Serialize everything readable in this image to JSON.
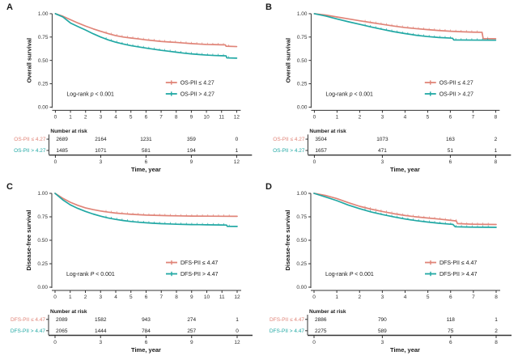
{
  "figure": {
    "background": "#ffffff",
    "colors": {
      "low": "#E08478",
      "high": "#21A8A4",
      "axis": "#333333",
      "text": "#222222"
    }
  },
  "chart_data": [
    {
      "type": "line",
      "letter": "A",
      "ylabel": "Overall survival",
      "xlabel": "Time, year",
      "xlim": [
        0,
        12
      ],
      "ylim": [
        0,
        1
      ],
      "xticks": [
        0,
        1,
        2,
        3,
        4,
        5,
        6,
        7,
        8,
        9,
        10,
        11,
        12
      ],
      "ytick_values": [
        1,
        0.75,
        0.5,
        0.25,
        0
      ],
      "ytick_labels": [
        "1.00",
        "0.75",
        "0.50",
        "0.25",
        "0.00"
      ],
      "logrank": {
        "prefix": "Log-rank ",
        "p": "p",
        "suffix": " < 0.001"
      },
      "legend": [
        {
          "label": "OS-PII ≤ 4.27",
          "color_key": "low"
        },
        {
          "label": "OS-PII > 4.27",
          "color_key": "high"
        }
      ],
      "series": [
        {
          "name": "OS-PII ≤ 4.27",
          "color_key": "low",
          "points": [
            [
              0,
              1
            ],
            [
              0.5,
              0.972
            ],
            [
              1,
              0.935
            ],
            [
              1.5,
              0.9
            ],
            [
              2,
              0.867
            ],
            [
              2.5,
              0.838
            ],
            [
              3,
              0.811
            ],
            [
              3.5,
              0.787
            ],
            [
              4,
              0.765
            ],
            [
              4.5,
              0.75
            ],
            [
              5,
              0.74
            ],
            [
              5.5,
              0.73
            ],
            [
              6,
              0.72
            ],
            [
              6.5,
              0.711
            ],
            [
              7,
              0.703
            ],
            [
              7.5,
              0.697
            ],
            [
              8,
              0.692
            ],
            [
              8.5,
              0.686
            ],
            [
              9,
              0.68
            ],
            [
              9.5,
              0.675
            ],
            [
              10,
              0.671
            ],
            [
              10.5,
              0.669
            ],
            [
              11,
              0.667
            ],
            [
              11.25,
              0.666
            ],
            [
              11.3,
              0.652
            ],
            [
              12,
              0.648
            ]
          ]
        },
        {
          "name": "OS-PII > 4.27",
          "color_key": "high",
          "points": [
            [
              0,
              1
            ],
            [
              0.5,
              0.965
            ],
            [
              1,
              0.9
            ],
            [
              1.5,
              0.862
            ],
            [
              2,
              0.825
            ],
            [
              2.5,
              0.785
            ],
            [
              3,
              0.75
            ],
            [
              3.5,
              0.72
            ],
            [
              4,
              0.695
            ],
            [
              4.5,
              0.675
            ],
            [
              5,
              0.658
            ],
            [
              5.5,
              0.645
            ],
            [
              6,
              0.632
            ],
            [
              6.5,
              0.62
            ],
            [
              7,
              0.608
            ],
            [
              7.5,
              0.598
            ],
            [
              8,
              0.588
            ],
            [
              8.5,
              0.578
            ],
            [
              9,
              0.57
            ],
            [
              9.5,
              0.563
            ],
            [
              10,
              0.557
            ],
            [
              10.5,
              0.553
            ],
            [
              11,
              0.55
            ],
            [
              11.3,
              0.548
            ],
            [
              11.35,
              0.527
            ],
            [
              12,
              0.524
            ]
          ]
        }
      ],
      "risk_table": {
        "header": "Number at risk",
        "ticks": [
          0,
          3,
          6,
          9,
          12
        ],
        "rows": [
          {
            "label": "OS-PII ≤ 4.27",
            "color_key": "low",
            "values": [
              "2689",
              "2164",
              "1231",
              "359",
              "0"
            ]
          },
          {
            "label": "OS-PII > 4.27",
            "color_key": "high",
            "values": [
              "1485",
              "1071",
              "581",
              "194",
              "1"
            ]
          }
        ]
      }
    },
    {
      "type": "line",
      "letter": "B",
      "ylabel": "Overall survival",
      "xlabel": "Time, year",
      "xlim": [
        0,
        8
      ],
      "ylim": [
        0,
        1
      ],
      "xticks": [
        0,
        1,
        2,
        3,
        4,
        5,
        6,
        7,
        8
      ],
      "ytick_values": [
        1,
        0.75,
        0.5,
        0.25,
        0
      ],
      "ytick_labels": [
        "1.00",
        "0.75",
        "0.50",
        "0.25",
        "0.00"
      ],
      "logrank": {
        "prefix": "Log-rank ",
        "p": "p",
        "suffix": " < 0.001"
      },
      "legend": [
        {
          "label": "OS-PII ≤ 4.27",
          "color_key": "low"
        },
        {
          "label": "OS-PII > 4.27",
          "color_key": "high"
        }
      ],
      "series": [
        {
          "name": "OS-PII ≤ 4.27",
          "color_key": "low",
          "points": [
            [
              0,
              1
            ],
            [
              0.5,
              0.985
            ],
            [
              1,
              0.965
            ],
            [
              1.5,
              0.945
            ],
            [
              2,
              0.924
            ],
            [
              2.5,
              0.905
            ],
            [
              3,
              0.886
            ],
            [
              3.5,
              0.868
            ],
            [
              4,
              0.852
            ],
            [
              4.5,
              0.84
            ],
            [
              5,
              0.829
            ],
            [
              5.5,
              0.82
            ],
            [
              6,
              0.812
            ],
            [
              6.5,
              0.807
            ],
            [
              7,
              0.803
            ],
            [
              7.4,
              0.801
            ],
            [
              7.45,
              0.733
            ],
            [
              8,
              0.732
            ]
          ]
        },
        {
          "name": "OS-PII > 4.27",
          "color_key": "high",
          "points": [
            [
              0,
              1
            ],
            [
              0.5,
              0.975
            ],
            [
              1,
              0.944
            ],
            [
              1.5,
              0.914
            ],
            [
              2,
              0.886
            ],
            [
              2.5,
              0.858
            ],
            [
              3,
              0.832
            ],
            [
              3.5,
              0.808
            ],
            [
              4,
              0.787
            ],
            [
              4.5,
              0.769
            ],
            [
              5,
              0.755
            ],
            [
              5.5,
              0.745
            ],
            [
              6,
              0.739
            ],
            [
              6.1,
              0.737
            ],
            [
              6.15,
              0.719
            ],
            [
              7,
              0.717
            ],
            [
              8,
              0.716
            ]
          ]
        }
      ],
      "risk_table": {
        "header": "Number at risk",
        "ticks": [
          0,
          3,
          6,
          8
        ],
        "rows": [
          {
            "label": "OS-PII ≤ 4.27",
            "color_key": "low",
            "values": [
              "3504",
              "1073",
              "163",
              "2"
            ]
          },
          {
            "label": "OS-PII > 4.27",
            "color_key": "high",
            "values": [
              "1657",
              "471",
              "51",
              "1"
            ]
          }
        ]
      }
    },
    {
      "type": "line",
      "letter": "C",
      "ylabel": "Disease-free survival",
      "xlabel": "Time, year",
      "xlim": [
        0,
        12
      ],
      "ylim": [
        0,
        1
      ],
      "xticks": [
        0,
        1,
        2,
        3,
        4,
        5,
        6,
        7,
        8,
        9,
        10,
        11,
        12
      ],
      "ytick_values": [
        1,
        0.75,
        0.5,
        0.25,
        0
      ],
      "ytick_labels": [
        "1.00",
        "0.75",
        "0.50",
        "0.25",
        "0.00"
      ],
      "logrank": {
        "prefix": "Log-rank ",
        "p": "P",
        "suffix": " < 0.001"
      },
      "legend": [
        {
          "label": "DFS-PII ≤ 4.47",
          "color_key": "low"
        },
        {
          "label": "DFS-PII > 4.47",
          "color_key": "high"
        }
      ],
      "series": [
        {
          "name": "DFS-PII ≤ 4.47",
          "color_key": "low",
          "points": [
            [
              0,
              1
            ],
            [
              0.5,
              0.948
            ],
            [
              1,
              0.905
            ],
            [
              1.5,
              0.872
            ],
            [
              2,
              0.846
            ],
            [
              2.5,
              0.827
            ],
            [
              3,
              0.812
            ],
            [
              3.5,
              0.8
            ],
            [
              4,
              0.79
            ],
            [
              4.5,
              0.783
            ],
            [
              5,
              0.777
            ],
            [
              5.5,
              0.772
            ],
            [
              6,
              0.768
            ],
            [
              6.5,
              0.766
            ],
            [
              7,
              0.764
            ],
            [
              7.5,
              0.762
            ],
            [
              8,
              0.76
            ],
            [
              9,
              0.758
            ],
            [
              10,
              0.757
            ],
            [
              11,
              0.756
            ],
            [
              12,
              0.755
            ]
          ]
        },
        {
          "name": "DFS-PII > 4.47",
          "color_key": "high",
          "points": [
            [
              0,
              1
            ],
            [
              0.5,
              0.932
            ],
            [
              1,
              0.878
            ],
            [
              1.5,
              0.84
            ],
            [
              2,
              0.808
            ],
            [
              2.5,
              0.78
            ],
            [
              3,
              0.757
            ],
            [
              3.5,
              0.738
            ],
            [
              4,
              0.722
            ],
            [
              4.5,
              0.71
            ],
            [
              5,
              0.7
            ],
            [
              5.5,
              0.692
            ],
            [
              6,
              0.686
            ],
            [
              6.5,
              0.681
            ],
            [
              7,
              0.677
            ],
            [
              7.5,
              0.674
            ],
            [
              8,
              0.671
            ],
            [
              8.5,
              0.669
            ],
            [
              9,
              0.667
            ],
            [
              9.5,
              0.666
            ],
            [
              10,
              0.665
            ],
            [
              10.5,
              0.664
            ],
            [
              11,
              0.663
            ],
            [
              11.3,
              0.662
            ],
            [
              11.35,
              0.648
            ],
            [
              12,
              0.647
            ]
          ]
        }
      ],
      "risk_table": {
        "header": "Number at risk",
        "ticks": [
          0,
          3,
          6,
          9,
          12
        ],
        "rows": [
          {
            "label": "DFS-PII ≤ 4.47",
            "color_key": "low",
            "values": [
              "2089",
              "1582",
              "943",
              "274",
              "1"
            ]
          },
          {
            "label": "DFS-PII > 4.47",
            "color_key": "high",
            "values": [
              "2065",
              "1444",
              "784",
              "257",
              "0"
            ]
          }
        ]
      }
    },
    {
      "type": "line",
      "letter": "D",
      "ylabel": "Disease-free survival",
      "xlabel": "Time, year",
      "xlim": [
        0,
        8
      ],
      "ylim": [
        0,
        1
      ],
      "xticks": [
        0,
        1,
        2,
        3,
        4,
        5,
        6,
        7,
        8
      ],
      "ytick_values": [
        1,
        0.75,
        0.5,
        0.25,
        0
      ],
      "ytick_labels": [
        "1.00",
        "0.75",
        "0.50",
        "0.25",
        "0.00"
      ],
      "logrank": {
        "prefix": "Log-rank ",
        "p": "P",
        "suffix": " < 0.001"
      },
      "legend": [
        {
          "label": "DFS-PII ≤ 4.47",
          "color_key": "low"
        },
        {
          "label": "DFS-PII > 4.47",
          "color_key": "high"
        }
      ],
      "series": [
        {
          "name": "DFS-PII ≤ 4.47",
          "color_key": "low",
          "points": [
            [
              0,
              1
            ],
            [
              0.5,
              0.978
            ],
            [
              1,
              0.945
            ],
            [
              1.5,
              0.902
            ],
            [
              2,
              0.862
            ],
            [
              2.5,
              0.832
            ],
            [
              3,
              0.807
            ],
            [
              3.5,
              0.784
            ],
            [
              4,
              0.764
            ],
            [
              4.5,
              0.749
            ],
            [
              5,
              0.737
            ],
            [
              5.5,
              0.726
            ],
            [
              6,
              0.712
            ],
            [
              6.25,
              0.706
            ],
            [
              6.3,
              0.678
            ],
            [
              6.7,
              0.673
            ],
            [
              7,
              0.671
            ],
            [
              7.5,
              0.669
            ],
            [
              8,
              0.668
            ]
          ]
        },
        {
          "name": "DFS-PII > 4.47",
          "color_key": "high",
          "points": [
            [
              0,
              1
            ],
            [
              0.5,
              0.962
            ],
            [
              1,
              0.922
            ],
            [
              1.5,
              0.876
            ],
            [
              2,
              0.837
            ],
            [
              2.5,
              0.803
            ],
            [
              3,
              0.774
            ],
            [
              3.5,
              0.749
            ],
            [
              4,
              0.727
            ],
            [
              4.5,
              0.709
            ],
            [
              5,
              0.694
            ],
            [
              5.5,
              0.681
            ],
            [
              6,
              0.671
            ],
            [
              6.1,
              0.669
            ],
            [
              6.2,
              0.644
            ],
            [
              6.7,
              0.641
            ],
            [
              7,
              0.64
            ],
            [
              7.5,
              0.639
            ],
            [
              8,
              0.638
            ]
          ]
        }
      ],
      "risk_table": {
        "header": "Number at risk",
        "ticks": [
          0,
          3,
          6,
          8
        ],
        "rows": [
          {
            "label": "DFS-PII ≤ 4.47",
            "color_key": "low",
            "values": [
              "2886",
              "790",
              "118",
              "1"
            ]
          },
          {
            "label": "DFS-PII > 4.47",
            "color_key": "high",
            "values": [
              "2275",
              "589",
              "75",
              "2"
            ]
          }
        ]
      }
    }
  ]
}
